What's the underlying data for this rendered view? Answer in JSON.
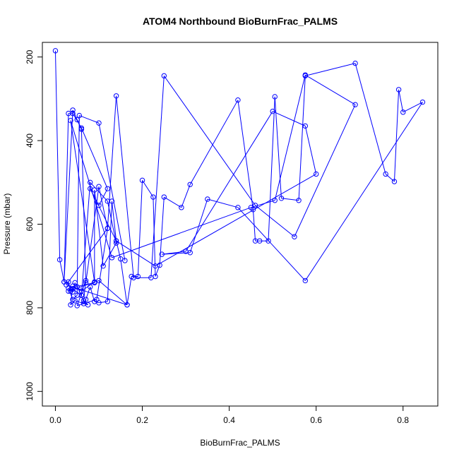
{
  "chart_data": {
    "type": "scatter",
    "title": "ATOM4 Northbound BioBurnFrac_PALMS",
    "xlabel": "BioBurnFrac_PALMS",
    "ylabel": "Pressure (mbar)",
    "xlim": [
      -0.03,
      0.88
    ],
    "ylim": [
      1035,
      165
    ],
    "y_reversed": true,
    "x_ticks": [
      0.0,
      0.2,
      0.4,
      0.6,
      0.8
    ],
    "x_tick_labels": [
      "0.0",
      "0.2",
      "0.4",
      "0.6",
      "0.8"
    ],
    "y_ticks": [
      200,
      400,
      600,
      800,
      1000
    ],
    "y_tick_labels": [
      "200",
      "400",
      "600",
      "800",
      "1000"
    ],
    "grid": false,
    "legend": "none",
    "series_color": "#0000ff",
    "marker": "open-circle",
    "series": [
      {
        "style": "points-and-lines",
        "x": [
          0.0,
          0.01,
          0.02,
          0.03,
          0.035,
          0.04,
          0.045,
          0.05,
          0.06,
          0.065,
          0.07,
          0.08,
          0.09,
          0.1,
          0.12,
          0.13,
          0.14,
          0.15,
          0.165,
          0.175,
          0.19,
          0.2,
          0.225,
          0.23,
          0.24,
          0.25,
          0.29,
          0.31,
          0.42,
          0.455,
          0.46,
          0.47,
          0.49,
          0.505,
          0.52,
          0.56,
          0.575,
          0.69,
          0.76,
          0.78,
          0.79,
          0.8,
          0.845,
          0.575,
          0.42,
          0.35,
          0.31,
          0.245,
          0.3,
          0.5,
          0.575,
          0.6,
          0.23,
          0.14,
          0.08,
          0.1,
          0.12,
          0.06,
          0.04,
          0.03,
          0.02,
          0.04,
          0.05,
          0.06,
          0.07,
          0.1,
          0.12,
          0.14,
          0.18,
          0.22,
          0.25,
          0.46,
          0.55,
          0.69,
          0.575,
          0.505,
          0.45,
          0.13,
          0.035,
          0.09,
          0.06,
          0.04,
          0.035,
          0.045,
          0.075,
          0.065,
          0.07,
          0.05,
          0.095,
          0.12,
          0.025,
          0.165,
          0.1,
          0.03,
          0.04,
          0.06,
          0.08,
          0.12,
          0.14,
          0.11,
          0.09,
          0.09,
          0.03,
          0.04,
          0.05,
          0.055,
          0.1,
          0.16
        ],
        "y": [
          185,
          685,
          738,
          738,
          760,
          762,
          740,
          750,
          770,
          790,
          780,
          750,
          785,
          788,
          785,
          545,
          640,
          683,
          793,
          725,
          725,
          495,
          535,
          725,
          698,
          535,
          560,
          505,
          303,
          565,
          640,
          640,
          640,
          295,
          538,
          543,
          245,
          215,
          480,
          498,
          278,
          332,
          308,
          735,
          560,
          540,
          668,
          672,
          665,
          330,
          365,
          480,
          700,
          640,
          515,
          555,
          515,
          370,
          335,
          335,
          738,
          327,
          350,
          373,
          740,
          510,
          610,
          293,
          728,
          728,
          245,
          555,
          630,
          314,
          243,
          543,
          560,
          680,
          352,
          738,
          760,
          748,
          793,
          783,
          793,
          783,
          735,
          795,
          780,
          610,
          745,
          793,
          735,
          760,
          755,
          770,
          500,
          545,
          645,
          700,
          518,
          740,
          753,
          780,
          770,
          340,
          358,
          687
        ]
      }
    ]
  }
}
